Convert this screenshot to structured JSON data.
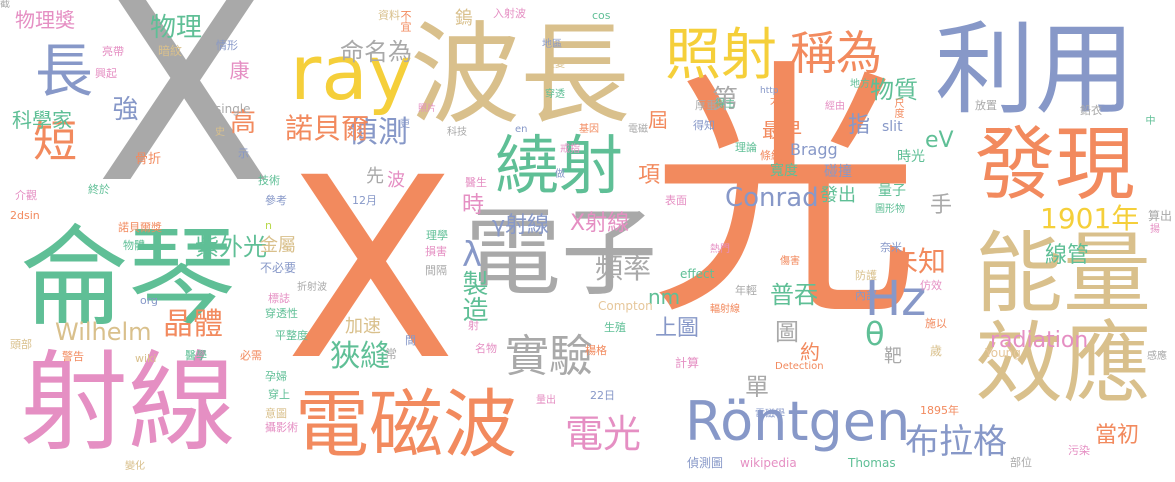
{
  "palette": {
    "gray": "#a9a9a9",
    "orange": "#f28a5e",
    "teal": "#5fbf96",
    "pink": "#e58fc3",
    "tan": "#d9c08c",
    "blue": "#8798c8",
    "yellow": "#f5cf3a",
    "lime": "#b8d84a",
    "sand": "#e6c79b"
  },
  "words": [
    {
      "text": "X",
      "color": "gray"
    },
    {
      "text": "光",
      "color": "orange"
    },
    {
      "text": "X",
      "color": "orange"
    },
    {
      "text": "侖琴",
      "color": "teal"
    },
    {
      "text": "射線",
      "color": "pink"
    },
    {
      "text": "波長",
      "color": "tan"
    },
    {
      "text": "利用",
      "color": "blue"
    },
    {
      "text": "電子",
      "color": "gray"
    },
    {
      "text": "電磁波",
      "color": "orange"
    },
    {
      "text": "能量",
      "color": "tan"
    },
    {
      "text": "效應",
      "color": "tan"
    },
    {
      "text": "發現",
      "color": "orange"
    },
    {
      "text": "ray",
      "color": "yellow"
    },
    {
      "text": "照射",
      "color": "yellow"
    },
    {
      "text": "繞射",
      "color": "teal"
    },
    {
      "text": "稱為",
      "color": "orange"
    },
    {
      "text": "Röntgen",
      "color": "blue"
    },
    {
      "text": "電光",
      "color": "pink"
    },
    {
      "text": "長",
      "color": "blue"
    },
    {
      "text": "短",
      "color": "orange"
    },
    {
      "text": "實驗",
      "color": "gray"
    },
    {
      "text": "Hz",
      "color": "blue"
    },
    {
      "text": "布拉格",
      "color": "blue"
    },
    {
      "text": "晶體",
      "color": "orange"
    },
    {
      "text": "狹縫",
      "color": "teal"
    },
    {
      "text": "偵測",
      "color": "blue"
    },
    {
      "text": "命名為",
      "color": "gray"
    },
    {
      "text": "諾貝爾",
      "color": "orange"
    },
    {
      "text": "物質",
      "color": "teal"
    },
    {
      "text": "1901年",
      "color": "yellow"
    },
    {
      "text": "未知",
      "color": "orange"
    },
    {
      "text": "紫外光",
      "color": "teal"
    },
    {
      "text": "X射線",
      "color": "pink"
    },
    {
      "text": "γ射線",
      "color": "blue"
    },
    {
      "text": "頻率",
      "color": "gray"
    },
    {
      "text": "Wilhelm",
      "color": "tan"
    },
    {
      "text": "Conrad",
      "color": "blue"
    },
    {
      "text": "radiation",
      "color": "pink"
    },
    {
      "text": "單",
      "color": "gray"
    },
    {
      "text": "θ",
      "color": "teal"
    },
    {
      "text": "λ",
      "color": "blue"
    },
    {
      "text": "強",
      "color": "blue"
    },
    {
      "text": "高",
      "color": "orange"
    },
    {
      "text": "製造",
      "color": "teal"
    },
    {
      "text": "普吞",
      "color": "teal"
    },
    {
      "text": "eV",
      "color": "teal"
    },
    {
      "text": "當初",
      "color": "orange"
    },
    {
      "text": "物理",
      "color": "teal"
    },
    {
      "text": "物理獎",
      "color": "pink"
    },
    {
      "text": "科學家",
      "color": "teal"
    },
    {
      "text": "第",
      "color": "gray"
    },
    {
      "text": "屆",
      "color": "orange"
    },
    {
      "text": "最早",
      "color": "orange"
    },
    {
      "text": "指",
      "color": "blue"
    },
    {
      "text": "手",
      "color": "gray"
    },
    {
      "text": "nm",
      "color": "teal"
    },
    {
      "text": "上圖",
      "color": "blue"
    },
    {
      "text": "圖",
      "color": "gray"
    },
    {
      "text": "時",
      "color": "pink"
    },
    {
      "text": "項",
      "color": "orange"
    },
    {
      "text": "加速",
      "color": "tan"
    },
    {
      "text": "金屬",
      "color": "tan"
    },
    {
      "text": "線管",
      "color": "teal"
    },
    {
      "text": "發出",
      "color": "teal"
    },
    {
      "text": "約",
      "color": "orange"
    },
    {
      "text": "靶",
      "color": "gray"
    },
    {
      "text": "先",
      "color": "gray"
    },
    {
      "text": "波",
      "color": "pink"
    },
    {
      "text": "康",
      "color": "pink"
    },
    {
      "text": "Bragg",
      "color": "blue"
    },
    {
      "text": "寬度",
      "color": "teal"
    },
    {
      "text": "碰撞",
      "color": "blue"
    },
    {
      "text": "時光",
      "color": "teal"
    },
    {
      "text": "量子",
      "color": "teal"
    },
    {
      "text": "slit",
      "color": "blue"
    },
    {
      "text": "Compton",
      "color": "sand"
    },
    {
      "text": "effect",
      "color": "teal"
    },
    {
      "text": "計算",
      "color": "pink"
    },
    {
      "text": "Thomas",
      "color": "teal"
    },
    {
      "text": "Young",
      "color": "sand"
    },
    {
      "text": "wikipedia",
      "color": "pink"
    },
    {
      "text": "Detection",
      "color": "orange"
    },
    {
      "text": "偵測圖",
      "color": "blue"
    },
    {
      "text": "鎢",
      "color": "tan"
    },
    {
      "text": "入射波",
      "color": "pink"
    },
    {
      "text": "cos",
      "color": "teal"
    },
    {
      "text": "不宜",
      "color": "orange"
    },
    {
      "text": "資料",
      "color": "tan"
    },
    {
      "text": "暗紋",
      "color": "tan"
    },
    {
      "text": "情形",
      "color": "blue"
    },
    {
      "text": "亮帶",
      "color": "pink"
    },
    {
      "text": "興起",
      "color": "pink"
    },
    {
      "text": "照片",
      "color": "pink"
    },
    {
      "text": "地區",
      "color": "blue"
    },
    {
      "text": "突變",
      "color": "tan"
    },
    {
      "text": "穿透",
      "color": "teal"
    },
    {
      "text": "得主",
      "color": "teal"
    },
    {
      "text": "太太",
      "color": "orange"
    },
    {
      "text": "經由",
      "color": "pink"
    },
    {
      "text": "尺度",
      "color": "orange"
    },
    {
      "text": "http",
      "color": "blue"
    },
    {
      "text": "地方",
      "color": "teal"
    },
    {
      "text": "中",
      "color": "teal"
    },
    {
      "text": "放置",
      "color": "gray"
    },
    {
      "text": "鉛衣",
      "color": "gray"
    },
    {
      "text": "厚重",
      "color": "gray"
    },
    {
      "text": "得知",
      "color": "blue"
    },
    {
      "text": "理論",
      "color": "teal"
    },
    {
      "text": "條紋",
      "color": "orange"
    },
    {
      "text": "圖形物",
      "color": "teal"
    },
    {
      "text": "基因",
      "color": "orange"
    },
    {
      "text": "電磁",
      "color": "gray"
    },
    {
      "text": "en",
      "color": "blue"
    },
    {
      "text": "科技",
      "color": "gray"
    },
    {
      "text": "更",
      "color": "blue"
    },
    {
      "text": "戒指",
      "color": "pink"
    },
    {
      "text": "做",
      "color": "blue"
    },
    {
      "text": "single",
      "color": "gray"
    },
    {
      "text": "史",
      "color": "tan"
    },
    {
      "text": "骨折",
      "color": "orange"
    },
    {
      "text": "示",
      "color": "blue"
    },
    {
      "text": "技術",
      "color": "teal"
    },
    {
      "text": "參考",
      "color": "blue"
    },
    {
      "text": "醫生",
      "color": "pink"
    },
    {
      "text": "表面",
      "color": "pink"
    },
    {
      "text": "12月",
      "color": "blue"
    },
    {
      "text": "介觀",
      "color": "pink"
    },
    {
      "text": "2dsin",
      "color": "orange"
    },
    {
      "text": "終於",
      "color": "teal"
    },
    {
      "text": "諾貝爾獎",
      "color": "orange"
    },
    {
      "text": "物體",
      "color": "teal"
    },
    {
      "text": "n",
      "color": "lime"
    },
    {
      "text": "不必要",
      "color": "blue"
    },
    {
      "text": "折射波",
      "color": "gray"
    },
    {
      "text": "org",
      "color": "blue"
    },
    {
      "text": "標誌",
      "color": "pink"
    },
    {
      "text": "穿透性",
      "color": "teal"
    },
    {
      "text": "平整度",
      "color": "teal"
    },
    {
      "text": "頭部",
      "color": "tan"
    },
    {
      "text": "警告",
      "color": "orange"
    },
    {
      "text": "醫學",
      "color": "teal"
    },
    {
      "text": "必需",
      "color": "orange"
    },
    {
      "text": "wiki",
      "color": "tan"
    },
    {
      "text": "間",
      "color": "blue"
    },
    {
      "text": "常",
      "color": "gray"
    },
    {
      "text": "射",
      "color": "pink"
    },
    {
      "text": "生殖",
      "color": "teal"
    },
    {
      "text": "名物",
      "color": "pink"
    },
    {
      "text": "楊格",
      "color": "orange"
    },
    {
      "text": "孕婦",
      "color": "teal"
    },
    {
      "text": "穿上",
      "color": "teal"
    },
    {
      "text": "量出",
      "color": "pink"
    },
    {
      "text": "22日",
      "color": "blue"
    },
    {
      "text": "意圖",
      "color": "tan"
    },
    {
      "text": "攝影術",
      "color": "pink"
    },
    {
      "text": "變化",
      "color": "tan"
    },
    {
      "text": "電磁學",
      "color": "blue"
    },
    {
      "text": "1895年",
      "color": "orange"
    },
    {
      "text": "污染",
      "color": "pink"
    },
    {
      "text": "部位",
      "color": "gray"
    },
    {
      "text": "感應",
      "color": "gray"
    },
    {
      "text": "歲",
      "color": "tan"
    },
    {
      "text": "施以",
      "color": "orange"
    },
    {
      "text": "防護",
      "color": "tan"
    },
    {
      "text": "內部",
      "color": "blue"
    },
    {
      "text": "奈米",
      "color": "blue"
    },
    {
      "text": "仿效",
      "color": "pink"
    },
    {
      "text": "傷害",
      "color": "orange"
    },
    {
      "text": "年輕",
      "color": "gray"
    },
    {
      "text": "輻射線",
      "color": "orange"
    },
    {
      "text": "熱門",
      "color": "pink"
    },
    {
      "text": "間隔",
      "color": "gray"
    },
    {
      "text": "損害",
      "color": "pink"
    },
    {
      "text": "理學",
      "color": "teal"
    },
    {
      "text": "算出",
      "color": "gray"
    },
    {
      "text": "揚",
      "color": "pink"
    },
    {
      "text": "截",
      "color": "gray"
    }
  ]
}
